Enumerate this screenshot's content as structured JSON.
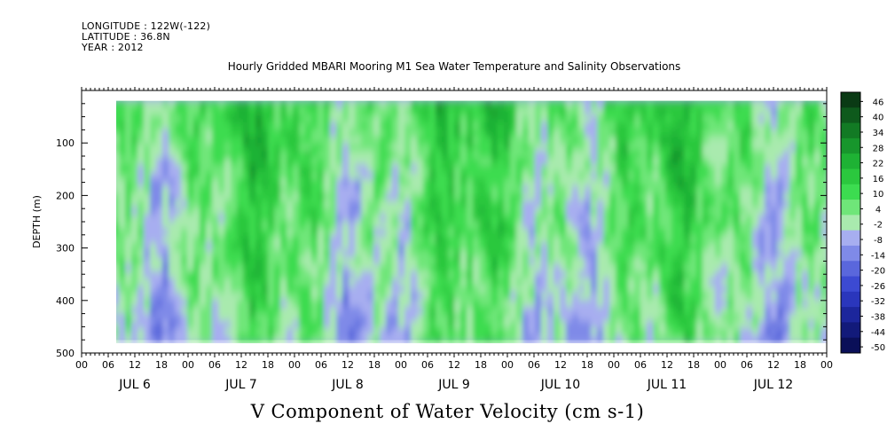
{
  "header": {
    "longitude": "LONGITUDE : 122W(-122)",
    "latitude": "LATITUDE : 36.8N",
    "year": "YEAR : 2012"
  },
  "chart_data": {
    "type": "heatmap",
    "title": "Hourly Gridded MBARI Mooring M1 Sea Water Temperature and Salinity Observations",
    "subtitle": "V Component of Water Velocity (cm s-1)",
    "ylabel": "DEPTH (m)",
    "y_axis": {
      "reversed": true,
      "ylim": [
        0,
        500
      ],
      "ticks": [
        100,
        200,
        300,
        400,
        500
      ],
      "tick_labels": [
        "100",
        "200",
        "300",
        "400",
        "500"
      ]
    },
    "x_axis": {
      "xlim_hours": [
        0,
        168
      ],
      "hour_ticks": [
        0,
        6,
        12,
        18
      ],
      "hour_tick_labels": [
        "00",
        "06",
        "12",
        "18"
      ],
      "day_labels": [
        "JUL 6",
        "JUL 7",
        "JUL 8",
        "JUL 9",
        "JUL 10",
        "JUL 11",
        "JUL 12"
      ]
    },
    "colorbar": {
      "levels": [
        46,
        40,
        34,
        28,
        22,
        16,
        10,
        4,
        -2,
        -8,
        -14,
        -20,
        -26,
        -32,
        -38,
        -44,
        -50
      ],
      "level_labels": [
        "46",
        "40",
        "34",
        "28",
        "22",
        "16",
        "10",
        "4",
        "-2",
        "-8",
        "-14",
        "-20",
        "-26",
        "-32",
        "-38",
        "-44",
        "-50"
      ],
      "colors": [
        "#0a3a14",
        "#0e5a1c",
        "#127a24",
        "#17962c",
        "#1eb234",
        "#2bc83e",
        "#3cdc50",
        "#6fe679",
        "#a9eaae",
        "#a7aef0",
        "#7f8ae8",
        "#5a67dc",
        "#3c4ad2",
        "#2a36bc",
        "#1c269c",
        "#121a7a",
        "#0a0f58"
      ]
    },
    "data_extent": {
      "depth_range_m": [
        20,
        475
      ],
      "start_hour": 7
    },
    "field_description": "Alternating positive (green) and negative (blue/purple) V velocity bands through depth, mostly ranging between -14 and 16 cm/s"
  }
}
